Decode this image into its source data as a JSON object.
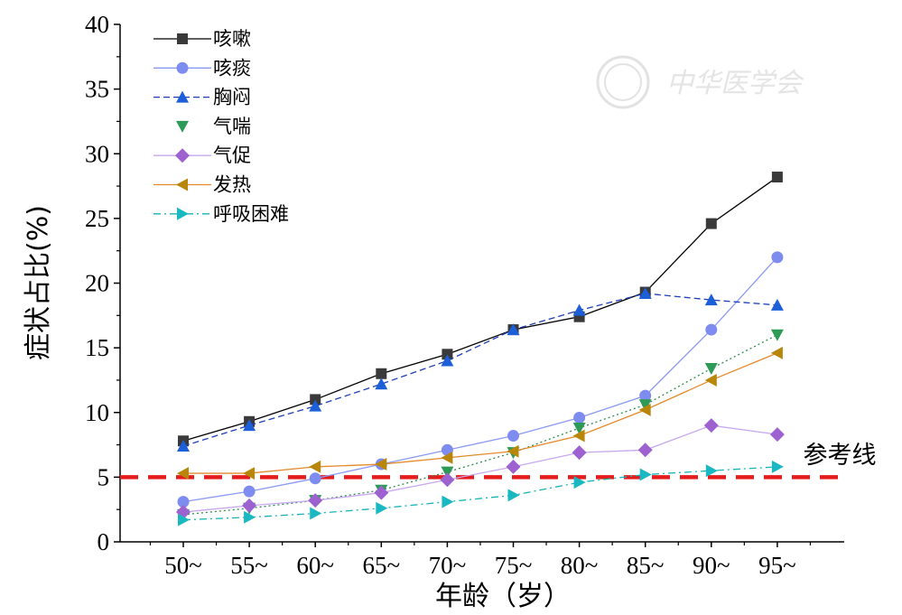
{
  "chart_data": {
    "type": "line",
    "xlabel": "年龄（岁）",
    "ylabel": "症状占比(%)",
    "categories": [
      "50~",
      "55~",
      "60~",
      "65~",
      "70~",
      "75~",
      "80~",
      "85~",
      "90~",
      "95~"
    ],
    "ylim": [
      0,
      40
    ],
    "yticks": [
      "0",
      "5",
      "10",
      "15",
      "20",
      "25",
      "30",
      "35",
      "40"
    ],
    "legend_position": "top-left",
    "series": [
      {
        "name": "咳嗽",
        "color": "#000000",
        "marker_color": "#3a3a3a",
        "marker": "square",
        "dash": "solid",
        "values": [
          7.8,
          9.3,
          11.0,
          13.0,
          14.5,
          16.4,
          17.4,
          19.3,
          24.6,
          28.2
        ]
      },
      {
        "name": "咳痰",
        "color": "#8a9af0",
        "marker_color": "#7e8cf0",
        "marker": "circle",
        "dash": "solid",
        "values": [
          3.1,
          3.9,
          4.9,
          6.0,
          7.1,
          8.2,
          9.6,
          11.3,
          16.4,
          22.0
        ]
      },
      {
        "name": "胸闷",
        "color": "#1e3fb8",
        "marker_color": "#1d5fd8",
        "marker": "triangle-up",
        "dash": "dash",
        "values": [
          7.4,
          9.0,
          10.5,
          12.2,
          14.0,
          16.4,
          17.9,
          19.2,
          18.7,
          18.3
        ]
      },
      {
        "name": "气喘",
        "color": "#2e8b4f",
        "marker_color": "#2e9a57",
        "marker": "triangle-down",
        "dash": "dot",
        "values": [
          2.1,
          2.6,
          3.2,
          4.0,
          5.4,
          6.9,
          8.8,
          10.6,
          13.4,
          16.0
        ]
      },
      {
        "name": "气促",
        "color": "#c8a8ee",
        "marker_color": "#9d62d0",
        "marker": "diamond",
        "dash": "solid",
        "values": [
          2.3,
          2.8,
          3.2,
          3.8,
          4.8,
          5.8,
          6.9,
          7.1,
          9.0,
          8.3
        ]
      },
      {
        "name": "发热",
        "color": "#e38a2a",
        "marker_color": "#b8860b",
        "marker": "triangle-left",
        "dash": "solid",
        "values": [
          5.3,
          5.3,
          5.8,
          6.0,
          6.5,
          7.0,
          8.2,
          10.2,
          12.5,
          14.6
        ]
      },
      {
        "name": "呼吸困难",
        "color": "#18b3b8",
        "marker_color": "#1ab9c2",
        "marker": "triangle-right",
        "dash": "dashdot",
        "values": [
          1.7,
          1.9,
          2.2,
          2.6,
          3.1,
          3.6,
          4.6,
          5.2,
          5.5,
          5.8
        ]
      }
    ],
    "reference_line": {
      "label": "参考线",
      "value": 5,
      "color": "#e51c1c"
    }
  },
  "watermark": "中华医学会"
}
